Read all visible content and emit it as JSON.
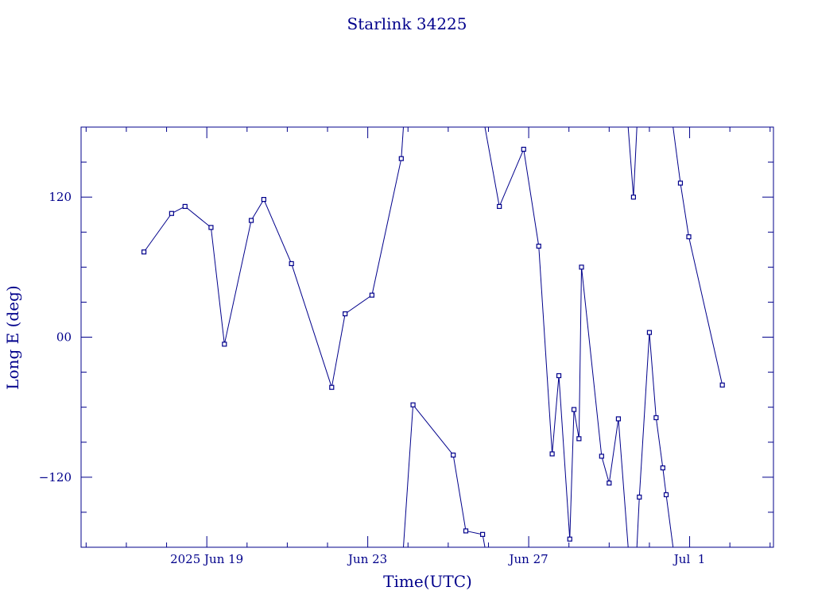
{
  "chart_data": {
    "type": "line",
    "title": "Starlink 34225",
    "xlabel": "Time(UTC)",
    "ylabel": "Long E (deg)",
    "color": "#00008b",
    "xlim": [
      "2025-06-15 21:00",
      "2025-07-03 02:00"
    ],
    "ylim": [
      -180,
      180
    ],
    "x_ticks": [
      {
        "date": "2025-06-19 00:00",
        "label": "2025 Jun 19"
      },
      {
        "date": "2025-06-23 00:00",
        "label": "Jun 23"
      },
      {
        "date": "2025-06-27 00:00",
        "label": "Jun 27"
      },
      {
        "date": "2025-07-01 00:00",
        "label": "Jul  1"
      }
    ],
    "y_ticks": [
      {
        "value": 120,
        "label": "120"
      },
      {
        "value": 0,
        "label": "00"
      },
      {
        "value": -120,
        "label": "−120"
      }
    ],
    "wraps_at_dateline": true,
    "points": [
      {
        "t": "2025-06-17 10:30",
        "lon": 73
      },
      {
        "t": "2025-06-18 03:00",
        "lon": 106
      },
      {
        "t": "2025-06-18 11:00",
        "lon": 112
      },
      {
        "t": "2025-06-19 02:30",
        "lon": 94
      },
      {
        "t": "2025-06-19 10:30",
        "lon": -6
      },
      {
        "t": "2025-06-20 02:30",
        "lon": 100
      },
      {
        "t": "2025-06-20 10:00",
        "lon": 118
      },
      {
        "t": "2025-06-21 02:30",
        "lon": 63
      },
      {
        "t": "2025-06-22 02:30",
        "lon": -43
      },
      {
        "t": "2025-06-22 10:30",
        "lon": 20
      },
      {
        "t": "2025-06-23 02:30",
        "lon": 36
      },
      {
        "t": "2025-06-23 20:00",
        "lon": 153
      },
      {
        "t": "2025-06-24 03:00",
        "lon": -58
      },
      {
        "t": "2025-06-25 03:00",
        "lon": -101
      },
      {
        "t": "2025-06-25 10:30",
        "lon": -166
      },
      {
        "t": "2025-06-25 20:30",
        "lon": -169
      },
      {
        "t": "2025-06-26 06:30",
        "lon": 112
      },
      {
        "t": "2025-06-26 21:00",
        "lon": 161
      },
      {
        "t": "2025-06-27 06:00",
        "lon": 78
      },
      {
        "t": "2025-06-27 14:00",
        "lon": -100
      },
      {
        "t": "2025-06-27 18:00",
        "lon": -33
      },
      {
        "t": "2025-06-28 00:30",
        "lon": -173
      },
      {
        "t": "2025-06-28 03:00",
        "lon": -62
      },
      {
        "t": "2025-06-28 06:00",
        "lon": -87
      },
      {
        "t": "2025-06-28 07:30",
        "lon": 60
      },
      {
        "t": "2025-06-28 19:30",
        "lon": -102
      },
      {
        "t": "2025-06-29 00:00",
        "lon": -125
      },
      {
        "t": "2025-06-29 05:30",
        "lon": -70
      },
      {
        "t": "2025-06-29 14:30",
        "lon": 120
      },
      {
        "t": "2025-06-29 18:00",
        "lon": -137
      },
      {
        "t": "2025-06-30 00:00",
        "lon": 4
      },
      {
        "t": "2025-06-30 04:00",
        "lon": -69
      },
      {
        "t": "2025-06-30 08:00",
        "lon": -112
      },
      {
        "t": "2025-06-30 10:00",
        "lon": -135
      },
      {
        "t": "2025-06-30 18:30",
        "lon": 132
      },
      {
        "t": "2025-06-30 23:30",
        "lon": 86
      },
      {
        "t": "2025-07-01 19:30",
        "lon": -41
      }
    ]
  }
}
